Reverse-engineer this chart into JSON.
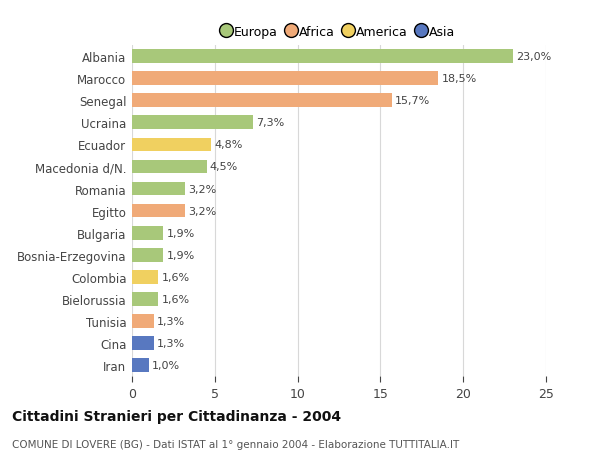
{
  "categories": [
    "Albania",
    "Marocco",
    "Senegal",
    "Ucraina",
    "Ecuador",
    "Macedonia d/N.",
    "Romania",
    "Egitto",
    "Bulgaria",
    "Bosnia-Erzegovina",
    "Colombia",
    "Bielorussia",
    "Tunisia",
    "Cina",
    "Iran"
  ],
  "values": [
    23.0,
    18.5,
    15.7,
    7.3,
    4.8,
    4.5,
    3.2,
    3.2,
    1.9,
    1.9,
    1.6,
    1.6,
    1.3,
    1.3,
    1.0
  ],
  "labels": [
    "23,0%",
    "18,5%",
    "15,7%",
    "7,3%",
    "4,8%",
    "4,5%",
    "3,2%",
    "3,2%",
    "1,9%",
    "1,9%",
    "1,6%",
    "1,6%",
    "1,3%",
    "1,3%",
    "1,0%"
  ],
  "continents": [
    "Europa",
    "Africa",
    "Africa",
    "Europa",
    "America",
    "Europa",
    "Europa",
    "Africa",
    "Europa",
    "Europa",
    "America",
    "Europa",
    "Africa",
    "Asia",
    "Asia"
  ],
  "continent_colors": {
    "Europa": "#a8c87a",
    "Africa": "#f0aa78",
    "America": "#f0d060",
    "Asia": "#5878c0"
  },
  "legend_entries": [
    "Europa",
    "Africa",
    "America",
    "Asia"
  ],
  "legend_colors": [
    "#a8c87a",
    "#f0aa78",
    "#f0d060",
    "#5878c0"
  ],
  "xlim": [
    0,
    25
  ],
  "xticks": [
    0,
    5,
    10,
    15,
    20,
    25
  ],
  "title": "Cittadini Stranieri per Cittadinanza - 2004",
  "subtitle": "COMUNE DI LOVERE (BG) - Dati ISTAT al 1° gennaio 2004 - Elaborazione TUTTITALIA.IT",
  "background_color": "#ffffff",
  "grid_color": "#d8d8d8",
  "bar_height": 0.62,
  "figsize": [
    6.0,
    4.6
  ],
  "dpi": 100
}
